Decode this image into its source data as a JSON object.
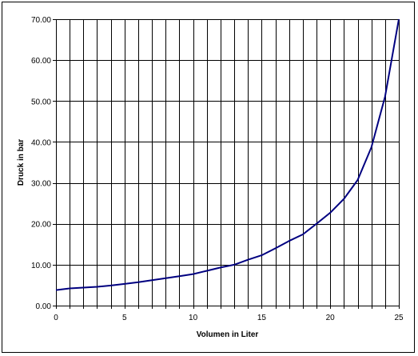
{
  "chart_data": {
    "type": "line",
    "title": "",
    "xlabel": "Volumen in Liter",
    "ylabel": "Druck in bar",
    "xlim": [
      0,
      25
    ],
    "ylim": [
      0,
      70
    ],
    "x_tick_labels": [
      "0",
      "5",
      "10",
      "15",
      "20",
      "25"
    ],
    "y_tick_labels": [
      "0.00",
      "10.00",
      "20.00",
      "30.00",
      "40.00",
      "50.00",
      "60.00",
      "70.00"
    ],
    "grid": {
      "horizontal_step": 10,
      "vertical_step": 1
    },
    "legend": "none",
    "line_color": "#000080",
    "series": [
      {
        "x": [
          0,
          1,
          2,
          3,
          4,
          5,
          6,
          7,
          8,
          9,
          10,
          11,
          12,
          13,
          14,
          15,
          16,
          17,
          18,
          19,
          20,
          21,
          22,
          23,
          24,
          25
        ],
        "values": [
          3.8,
          4.2,
          4.4,
          4.6,
          4.9,
          5.3,
          5.7,
          6.2,
          6.7,
          7.2,
          7.7,
          8.5,
          9.3,
          10.0,
          11.2,
          12.3,
          14.0,
          15.8,
          17.4,
          20.0,
          22.7,
          26.1,
          30.7,
          38.7,
          51.1,
          70.0
        ]
      }
    ]
  }
}
